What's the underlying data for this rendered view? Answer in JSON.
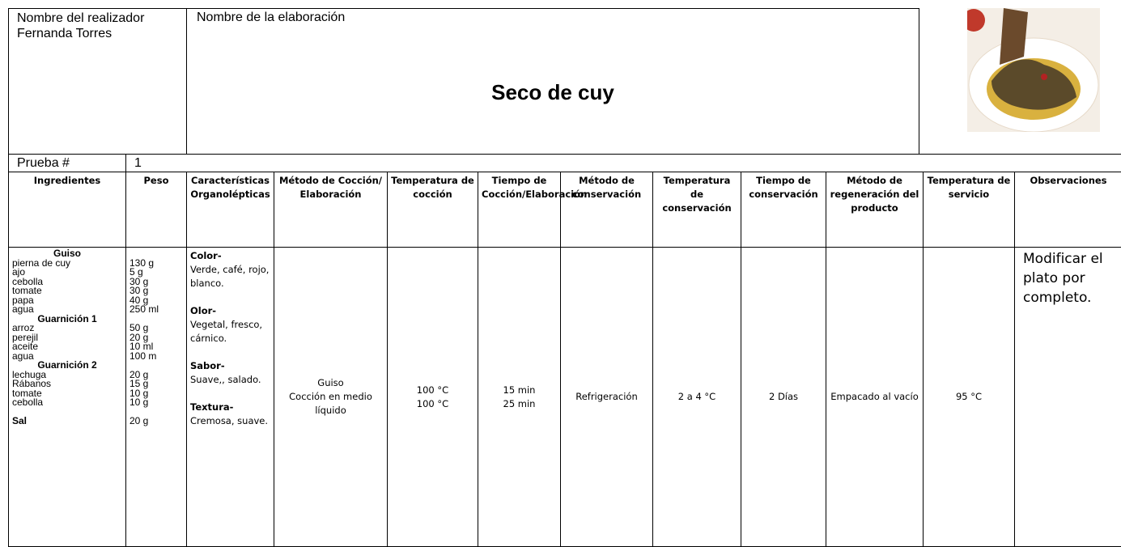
{
  "header": {
    "realizador_label": "Nombre del realizador",
    "realizador": "Fernanda Torres",
    "elaboracion_label": "Nombre de la elaboración",
    "title": "Seco de cuy"
  },
  "prueba": {
    "label": "Prueba #",
    "value": "1"
  },
  "columns": [
    "Ingredientes",
    "Peso",
    "Características Organolépticas",
    "Método de Cocción/ Elaboración",
    "Temperatura de cocción",
    "Tiempo de Cocción/Elaboración",
    "Método de conservación",
    "Temperatura de conservación",
    "Tiempo de conservación",
    "Método de regeneración del producto",
    "Temperatura de servicio",
    "Observaciones"
  ],
  "ingredients": {
    "groups": [
      {
        "name": "Guiso",
        "items": [
          {
            "name": "pierna de cuy",
            "weight": "130 g"
          },
          {
            "name": "ajo",
            "weight": "5 g"
          },
          {
            "name": "cebolla",
            "weight": "30 g"
          },
          {
            "name": "tomate",
            "weight": "30 g"
          },
          {
            "name": "papa",
            "weight": "40 g"
          },
          {
            "name": "agua",
            "weight": "250 ml"
          }
        ]
      },
      {
        "name": "Guarnición 1",
        "items": [
          {
            "name": "arroz",
            "weight": "50 g"
          },
          {
            "name": "perejil",
            "weight": "20 g"
          },
          {
            "name": "aceite",
            "weight": "10 ml"
          },
          {
            "name": "agua",
            "weight": "100 m"
          }
        ]
      },
      {
        "name": "Guarnición 2",
        "items": [
          {
            "name": "lechuga",
            "weight": "20 g"
          },
          {
            "name": "Rábanos",
            "weight": "15 g"
          },
          {
            "name": "tomate",
            "weight": "10 g"
          },
          {
            "name": "cebolla",
            "weight": "10 g"
          }
        ]
      }
    ],
    "salt": {
      "name": "Sal",
      "weight": "20 g"
    }
  },
  "characteristics": [
    {
      "label": "Color-",
      "text": "Verde, café, rojo, blanco."
    },
    {
      "label": "Olor-",
      "text": "Vegetal, fresco, cárnico."
    },
    {
      "label": "Sabor-",
      "text": "Suave,, salado."
    },
    {
      "label": "Textura-",
      "text": "Cremosa, suave."
    }
  ],
  "method": [
    "Guiso",
    "Cocción en medio líquido"
  ],
  "cook_temps": [
    "100 °C",
    "100 °C"
  ],
  "cook_times": [
    "15 min",
    "25 min"
  ],
  "conservation_method": "Refrigeración",
  "conservation_temp": "2 a 4 °C",
  "conservation_time": "2 Días",
  "regeneration": "Empacado al vacío",
  "service_temp": "95 °C",
  "observations": "Modificar el plato por completo."
}
